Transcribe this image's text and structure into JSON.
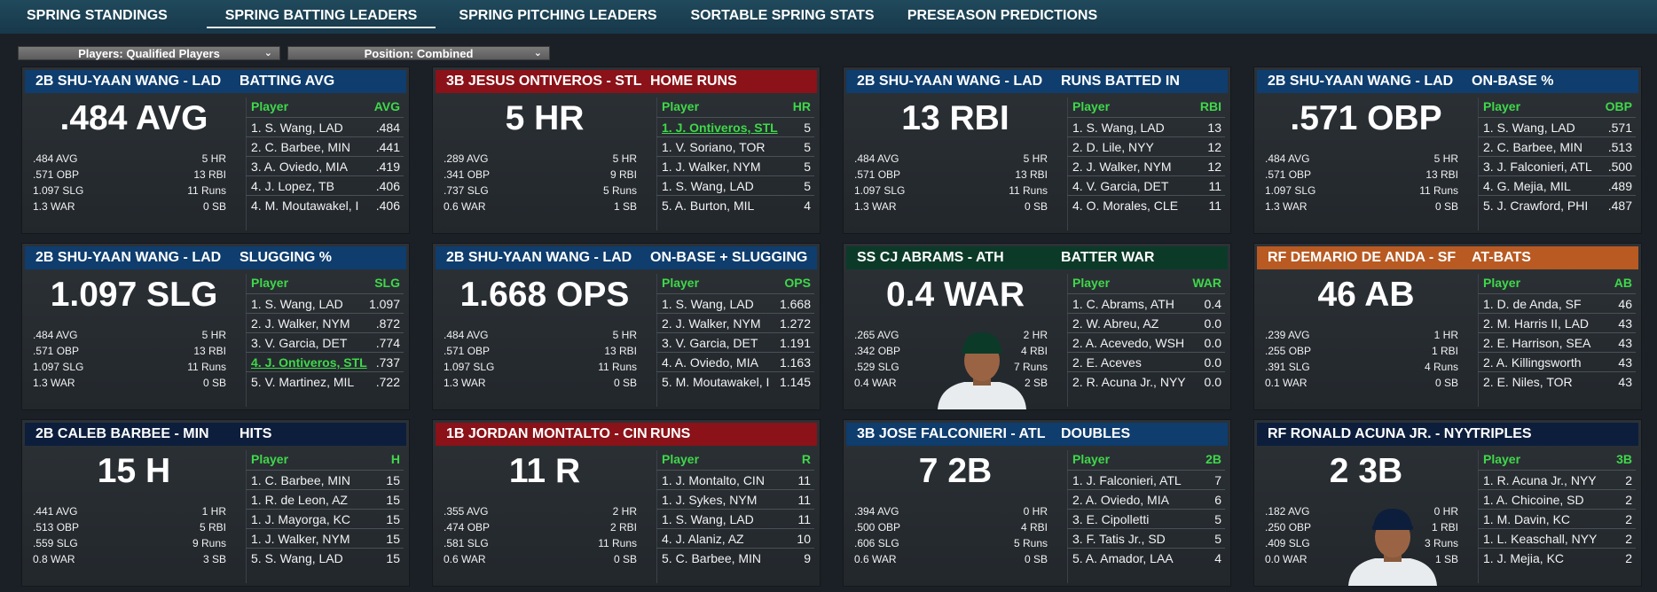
{
  "nav": {
    "tabs": [
      {
        "label": "SPRING STANDINGS"
      },
      {
        "label": "SPRING BATTING LEADERS"
      },
      {
        "label": "SPRING PITCHING LEADERS"
      },
      {
        "label": "SORTABLE SPRING STATS"
      },
      {
        "label": "PRESEASON PREDICTIONS"
      }
    ],
    "active": "SPRING BATTING LEADERS"
  },
  "filters": {
    "players": "Players: Qualified Players",
    "position": "Position: Combined"
  },
  "colors": {
    "blue": "#0e3d6e",
    "red": "#8a1218",
    "navy": "#0c1e3c",
    "green": "#0c3a28",
    "orange": "#b85a22",
    "leader_link": "#3fd84a"
  },
  "cards": [
    {
      "header_color": "blue",
      "player": "2B SHU-YAAN WANG - LAD",
      "stat": "BATTING AVG",
      "big": ".484 AVG",
      "mini": [
        [
          ".484 AVG",
          "5 HR"
        ],
        [
          ".571 OBP",
          "13 RBI"
        ],
        [
          "1.097 SLG",
          "11 Runs"
        ],
        [
          "1.3 WAR",
          "0 SB"
        ]
      ],
      "col_player": "Player",
      "col_stat": "AVG",
      "rows": [
        [
          "1. S. Wang, LAD",
          ".484"
        ],
        [
          "2. C. Barbee, MIN",
          ".441"
        ],
        [
          "3. A. Oviedo, MIA",
          ".419"
        ],
        [
          "4. J. Lopez, TB",
          ".406"
        ],
        [
          "4. M. Moutawakel, I",
          ".406"
        ]
      ],
      "highlight": -1,
      "portrait": ""
    },
    {
      "header_color": "red",
      "player": "3B JESUS ONTIVEROS - STL",
      "stat": "HOME RUNS",
      "big": "5 HR",
      "mini": [
        [
          ".289 AVG",
          "5 HR"
        ],
        [
          ".341 OBP",
          "9 RBI"
        ],
        [
          ".737 SLG",
          "5 Runs"
        ],
        [
          "0.6 WAR",
          "1 SB"
        ]
      ],
      "col_player": "Player",
      "col_stat": "HR",
      "rows": [
        [
          "1. J. Ontiveros, STL",
          "5"
        ],
        [
          "1. V. Soriano, TOR",
          "5"
        ],
        [
          "1. J. Walker, NYM",
          "5"
        ],
        [
          "1. S. Wang, LAD",
          "5"
        ],
        [
          "5. A. Burton, MIL",
          "4"
        ]
      ],
      "highlight": 0,
      "portrait": ""
    },
    {
      "header_color": "blue",
      "player": "2B SHU-YAAN WANG - LAD",
      "stat": "RUNS BATTED IN",
      "big": "13 RBI",
      "mini": [
        [
          ".484 AVG",
          "5 HR"
        ],
        [
          ".571 OBP",
          "13 RBI"
        ],
        [
          "1.097 SLG",
          "11 Runs"
        ],
        [
          "1.3 WAR",
          "0 SB"
        ]
      ],
      "col_player": "Player",
      "col_stat": "RBI",
      "rows": [
        [
          "1. S. Wang, LAD",
          "13"
        ],
        [
          "2. D. Lile, NYY",
          "12"
        ],
        [
          "2. J. Walker, NYM",
          "12"
        ],
        [
          "4. V. Garcia, DET",
          "11"
        ],
        [
          "4. O. Morales, CLE",
          "11"
        ]
      ],
      "highlight": -1,
      "portrait": ""
    },
    {
      "header_color": "blue",
      "player": "2B SHU-YAAN WANG - LAD",
      "stat": "ON-BASE %",
      "big": ".571 OBP",
      "mini": [
        [
          ".484 AVG",
          "5 HR"
        ],
        [
          ".571 OBP",
          "13 RBI"
        ],
        [
          "1.097 SLG",
          "11 Runs"
        ],
        [
          "1.3 WAR",
          "0 SB"
        ]
      ],
      "col_player": "Player",
      "col_stat": "OBP",
      "rows": [
        [
          "1. S. Wang, LAD",
          ".571"
        ],
        [
          "2. C. Barbee, MIN",
          ".513"
        ],
        [
          "3. J. Falconieri, ATL",
          ".500"
        ],
        [
          "4. G. Mejia, MIL",
          ".489"
        ],
        [
          "5. J. Crawford, PHI",
          ".487"
        ]
      ],
      "highlight": -1,
      "portrait": ""
    },
    {
      "header_color": "blue",
      "player": "2B SHU-YAAN WANG - LAD",
      "stat": "SLUGGING %",
      "big": "1.097 SLG",
      "mini": [
        [
          ".484 AVG",
          "5 HR"
        ],
        [
          ".571 OBP",
          "13 RBI"
        ],
        [
          "1.097 SLG",
          "11 Runs"
        ],
        [
          "1.3 WAR",
          "0 SB"
        ]
      ],
      "col_player": "Player",
      "col_stat": "SLG",
      "rows": [
        [
          "1. S. Wang, LAD",
          "1.097"
        ],
        [
          "2. J. Walker, NYM",
          ".872"
        ],
        [
          "3. V. Garcia, DET",
          ".774"
        ],
        [
          "4. J. Ontiveros, STL",
          ".737"
        ],
        [
          "5. V. Martinez, MIL",
          ".722"
        ]
      ],
      "highlight": 3,
      "portrait": ""
    },
    {
      "header_color": "blue",
      "player": "2B SHU-YAAN WANG - LAD",
      "stat": "ON-BASE + SLUGGING",
      "big": "1.668 OPS",
      "mini": [
        [
          ".484 AVG",
          "5 HR"
        ],
        [
          ".571 OBP",
          "13 RBI"
        ],
        [
          "1.097 SLG",
          "11 Runs"
        ],
        [
          "1.3 WAR",
          "0 SB"
        ]
      ],
      "col_player": "Player",
      "col_stat": "OPS",
      "rows": [
        [
          "1. S. Wang, LAD",
          "1.668"
        ],
        [
          "2. J. Walker, NYM",
          "1.272"
        ],
        [
          "3. V. Garcia, DET",
          "1.191"
        ],
        [
          "4. A. Oviedo, MIA",
          "1.163"
        ],
        [
          "5. M. Moutawakel, I",
          "1.145"
        ]
      ],
      "highlight": -1,
      "portrait": ""
    },
    {
      "header_color": "green",
      "player": "SS CJ ABRAMS - ATH",
      "stat": "BATTER WAR",
      "big": "0.4 WAR",
      "mini": [
        [
          ".265 AVG",
          "2 HR"
        ],
        [
          ".342 OBP",
          "4 RBI"
        ],
        [
          ".529 SLG",
          "7 Runs"
        ],
        [
          "0.4 WAR",
          "2 SB"
        ]
      ],
      "col_player": "Player",
      "col_stat": "WAR",
      "rows": [
        [
          "1. C. Abrams, ATH",
          "0.4"
        ],
        [
          "2. W. Abreu, AZ",
          "0.0"
        ],
        [
          "2. A. Acevedo, WSH",
          "0.0"
        ],
        [
          "2. E. Aceves",
          "0.0"
        ],
        [
          "2. R. Acuna Jr., NYY",
          "0.0"
        ]
      ],
      "highlight": -1,
      "portrait": "green"
    },
    {
      "header_color": "orange",
      "player": "RF DEMARIO DE ANDA - SF",
      "stat": "AT-BATS",
      "big": "46 AB",
      "mini": [
        [
          ".239 AVG",
          "1 HR"
        ],
        [
          ".255 OBP",
          "1 RBI"
        ],
        [
          ".391 SLG",
          "4 Runs"
        ],
        [
          "0.1 WAR",
          "0 SB"
        ]
      ],
      "col_player": "Player",
      "col_stat": "AB",
      "rows": [
        [
          "1. D. de Anda, SF",
          "46"
        ],
        [
          "2. M. Harris II, LAD",
          "43"
        ],
        [
          "2. E. Harrison, SEA",
          "43"
        ],
        [
          "2. A. Killingsworth",
          "43"
        ],
        [
          "2. E. Niles, TOR",
          "43"
        ]
      ],
      "highlight": -1,
      "portrait": ""
    },
    {
      "header_color": "navy",
      "player": "2B CALEB BARBEE - MIN",
      "stat": "HITS",
      "big": "15 H",
      "mini": [
        [
          ".441 AVG",
          "1 HR"
        ],
        [
          ".513 OBP",
          "5 RBI"
        ],
        [
          ".559 SLG",
          "9 Runs"
        ],
        [
          "0.8 WAR",
          "3 SB"
        ]
      ],
      "col_player": "Player",
      "col_stat": "H",
      "rows": [
        [
          "1. C. Barbee, MIN",
          "15"
        ],
        [
          "1. R. de Leon, AZ",
          "15"
        ],
        [
          "1. J. Mayorga, KC",
          "15"
        ],
        [
          "1. J. Walker, NYM",
          "15"
        ],
        [
          "5. S. Wang, LAD",
          "15"
        ]
      ],
      "highlight": -1,
      "portrait": ""
    },
    {
      "header_color": "red",
      "player": "1B JORDAN MONTALTO - CIN",
      "stat": "RUNS",
      "big": "11 R",
      "mini": [
        [
          ".355 AVG",
          "2 HR"
        ],
        [
          ".474 OBP",
          "2 RBI"
        ],
        [
          ".581 SLG",
          "11 Runs"
        ],
        [
          "0.6 WAR",
          "0 SB"
        ]
      ],
      "col_player": "Player",
      "col_stat": "R",
      "rows": [
        [
          "1. J. Montalto, CIN",
          "11"
        ],
        [
          "1. J. Sykes, NYM",
          "11"
        ],
        [
          "1. S. Wang, LAD",
          "11"
        ],
        [
          "4. J. Alaniz, AZ",
          "10"
        ],
        [
          "5. C. Barbee, MIN",
          "9"
        ]
      ],
      "highlight": -1,
      "portrait": ""
    },
    {
      "header_color": "blue",
      "player": "3B JOSE FALCONIERI - ATL",
      "stat": "DOUBLES",
      "big": "7 2B",
      "mini": [
        [
          ".394 AVG",
          "0 HR"
        ],
        [
          ".500 OBP",
          "4 RBI"
        ],
        [
          ".606 SLG",
          "5 Runs"
        ],
        [
          "0.6 WAR",
          "0 SB"
        ]
      ],
      "col_player": "Player",
      "col_stat": "2B",
      "rows": [
        [
          "1. J. Falconieri, ATL",
          "7"
        ],
        [
          "2. A. Oviedo, MIA",
          "6"
        ],
        [
          "3. E. Cipolletti",
          "5"
        ],
        [
          "3. F. Tatis Jr., SD",
          "5"
        ],
        [
          "5. A. Amador, LAA",
          "4"
        ]
      ],
      "highlight": -1,
      "portrait": ""
    },
    {
      "header_color": "navy",
      "player": "RF RONALD ACUNA JR. - NYY",
      "stat": "TRIPLES",
      "big": "2 3B",
      "mini": [
        [
          ".182 AVG",
          "0 HR"
        ],
        [
          ".250 OBP",
          "1 RBI"
        ],
        [
          ".409 SLG",
          "3 Runs"
        ],
        [
          "0.0 WAR",
          "1 SB"
        ]
      ],
      "col_player": "Player",
      "col_stat": "3B",
      "rows": [
        [
          "1. R. Acuna Jr., NYY",
          "2"
        ],
        [
          "1. A. Chicoine, SD",
          "2"
        ],
        [
          "1. M. Davin, KC",
          "2"
        ],
        [
          "1. L. Keaschall, NYY",
          "2"
        ],
        [
          "1. J. Mejia, KC",
          "2"
        ]
      ],
      "highlight": -1,
      "portrait": "navy"
    }
  ]
}
